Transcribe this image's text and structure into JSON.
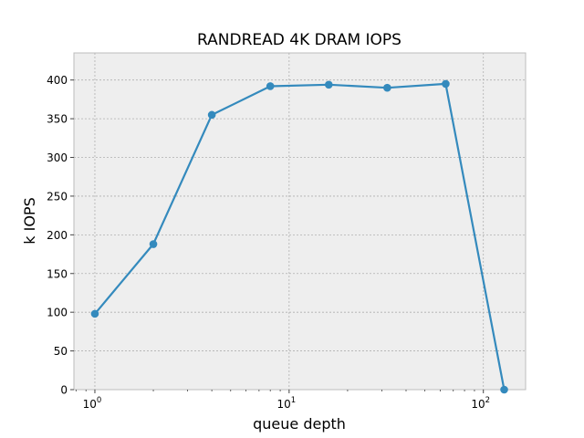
{
  "chart_data": {
    "type": "line",
    "title": "RANDREAD 4K DRAM IOPS",
    "xlabel": "queue depth",
    "ylabel": "k IOPS",
    "xscale": "log",
    "xlim": [
      0.78,
      165
    ],
    "ylim": [
      0,
      435
    ],
    "grid": true,
    "x_ticks": [
      {
        "value": 1,
        "base": "10",
        "exp": "0"
      },
      {
        "value": 10,
        "base": "10",
        "exp": "1"
      },
      {
        "value": 100,
        "base": "10",
        "exp": "2"
      }
    ],
    "y_ticks": [
      0,
      50,
      100,
      150,
      200,
      250,
      300,
      350,
      400
    ],
    "series": [
      {
        "color": "#348abd",
        "x": [
          1,
          2,
          4,
          8,
          16,
          32,
          64,
          128
        ],
        "y": [
          98,
          188,
          355,
          392,
          394,
          390,
          395,
          0
        ]
      }
    ],
    "colors": {
      "background": "#eeeeee",
      "grid": "#b0b0b0",
      "line": "#348abd"
    }
  }
}
